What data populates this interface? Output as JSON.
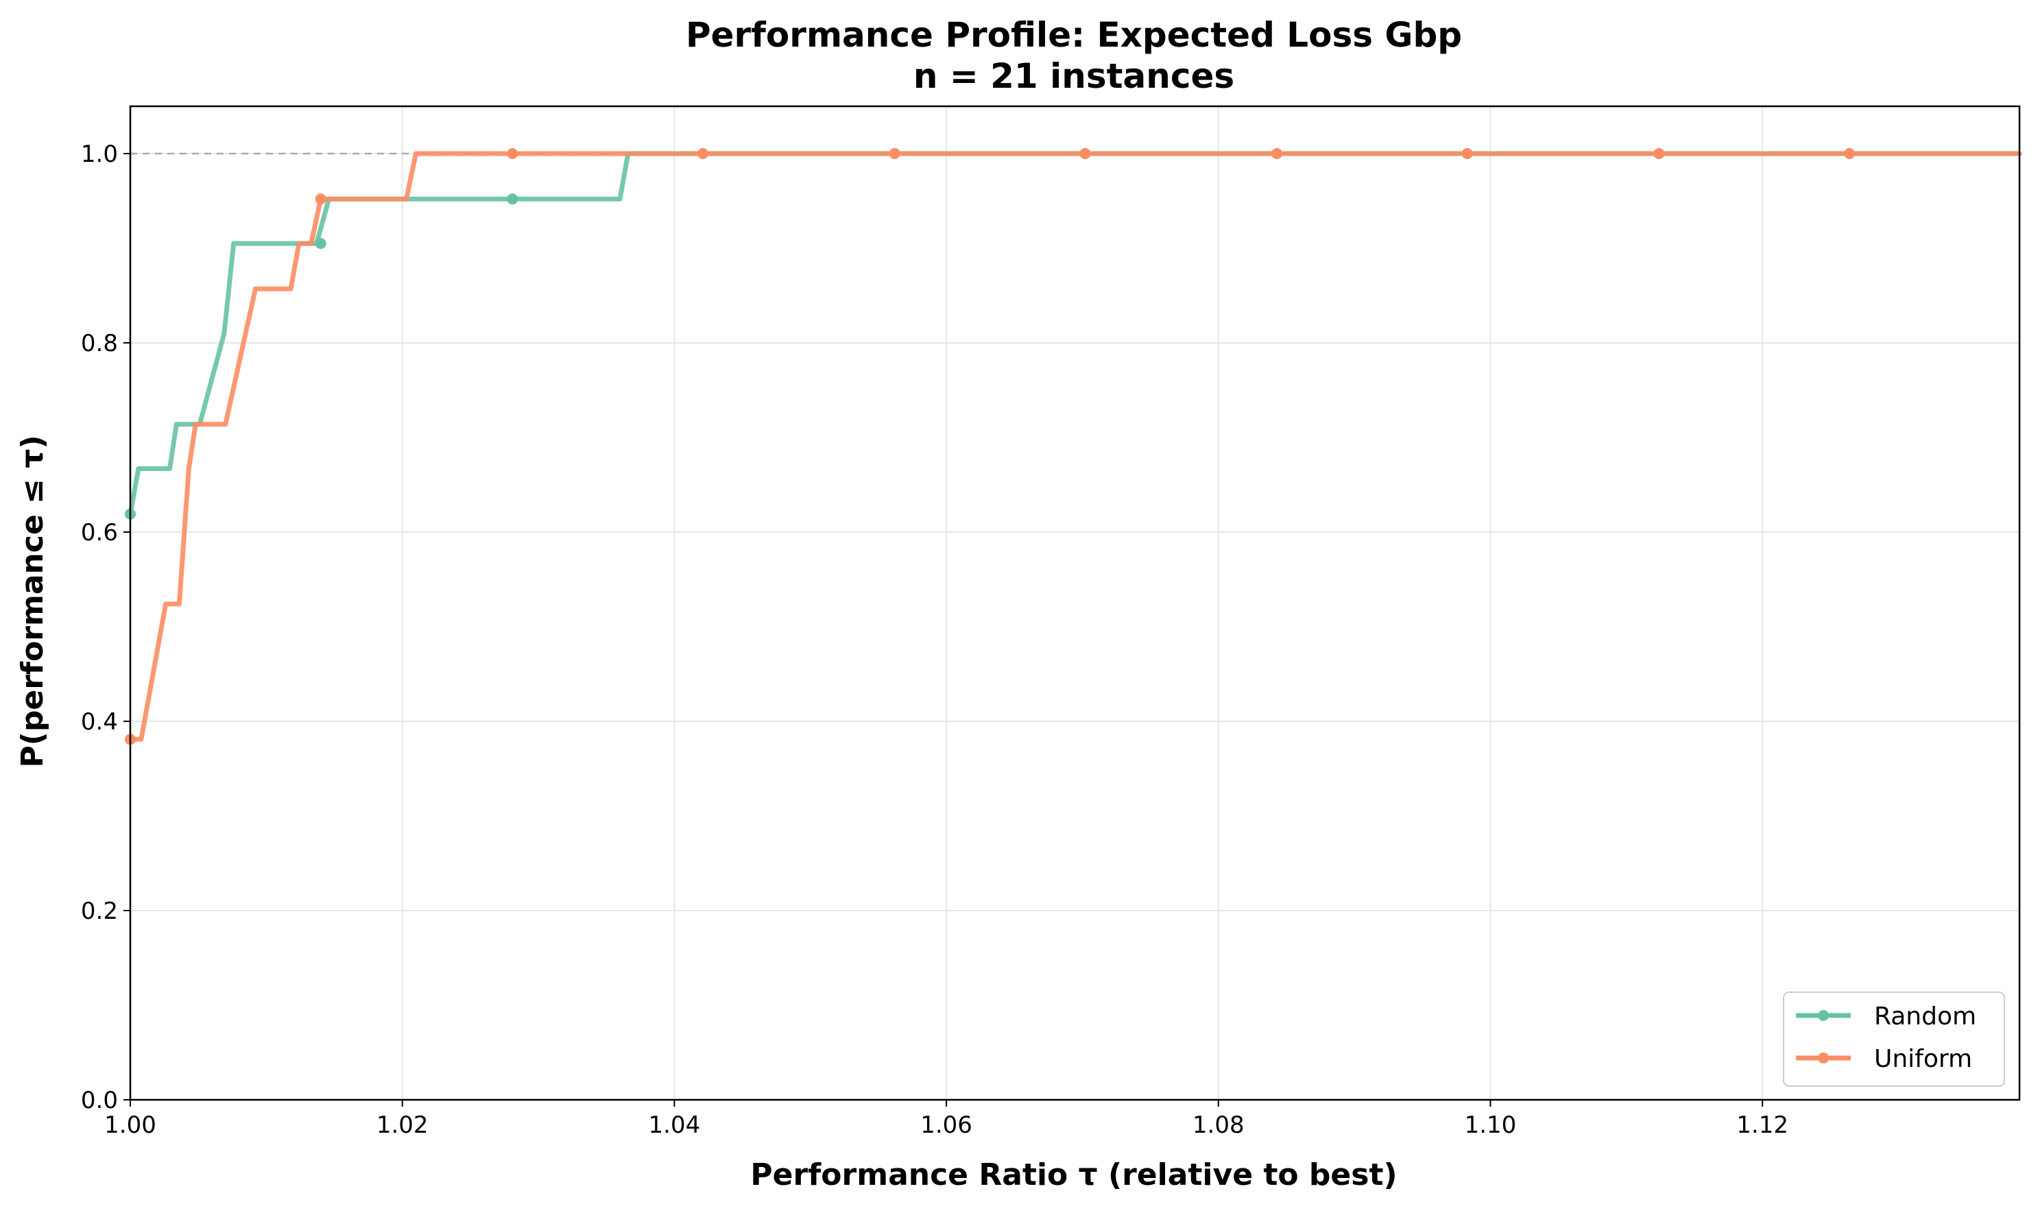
{
  "chart_data": {
    "type": "line",
    "title": "Performance Profile: Expected Loss Gbp",
    "subtitle": "n = 21 instances",
    "xlabel": "Performance Ratio τ (relative to best)",
    "ylabel": "P(performance ≤ τ)",
    "xlim": [
      1.0,
      1.1389
    ],
    "ylim": [
      0.0,
      1.05
    ],
    "x_ticks": [
      "1.00",
      "1.02",
      "1.04",
      "1.06",
      "1.08",
      "1.10",
      "1.12"
    ],
    "y_ticks": [
      "0.0",
      "0.2",
      "0.4",
      "0.6",
      "0.8",
      "1.0"
    ],
    "grid": true,
    "reference_line_y": 1.0,
    "legend_position": "lower-right",
    "series": [
      {
        "name": "Random",
        "color": "#66c2a5",
        "points": [
          [
            1.0,
            0.619
          ],
          [
            1.0006,
            0.667
          ],
          [
            1.0029,
            0.667
          ],
          [
            1.0034,
            0.714
          ],
          [
            1.0051,
            0.714
          ],
          [
            1.0069,
            0.81
          ],
          [
            1.0076,
            0.905
          ],
          [
            1.0137,
            0.905
          ],
          [
            1.0146,
            0.952
          ],
          [
            1.036,
            0.952
          ],
          [
            1.0366,
            1.0
          ],
          [
            1.1389,
            1.0
          ]
        ],
        "markers": [
          [
            1.0,
            0.619
          ],
          [
            1.014,
            0.905
          ],
          [
            1.0281,
            0.952
          ],
          [
            1.0421,
            1.0
          ],
          [
            1.0562,
            1.0
          ],
          [
            1.0702,
            1.0
          ],
          [
            1.0843,
            1.0
          ],
          [
            1.0983,
            1.0
          ],
          [
            1.1124,
            1.0
          ],
          [
            1.1264,
            1.0
          ]
        ]
      },
      {
        "name": "Uniform",
        "color": "#fc8d62",
        "points": [
          [
            1.0,
            0.381
          ],
          [
            1.0008,
            0.381
          ],
          [
            1.0026,
            0.524
          ],
          [
            1.0036,
            0.524
          ],
          [
            1.0043,
            0.667
          ],
          [
            1.0048,
            0.714
          ],
          [
            1.007,
            0.714
          ],
          [
            1.0092,
            0.857
          ],
          [
            1.0118,
            0.857
          ],
          [
            1.0124,
            0.905
          ],
          [
            1.0133,
            0.905
          ],
          [
            1.014,
            0.952
          ],
          [
            1.0203,
            0.952
          ],
          [
            1.021,
            1.0
          ],
          [
            1.1389,
            1.0
          ]
        ],
        "markers": [
          [
            1.0,
            0.381
          ],
          [
            1.014,
            0.952
          ],
          [
            1.0281,
            1.0
          ],
          [
            1.0421,
            1.0
          ],
          [
            1.0562,
            1.0
          ],
          [
            1.0702,
            1.0
          ],
          [
            1.0843,
            1.0
          ],
          [
            1.0983,
            1.0
          ],
          [
            1.1124,
            1.0
          ],
          [
            1.1264,
            1.0
          ]
        ]
      }
    ]
  }
}
